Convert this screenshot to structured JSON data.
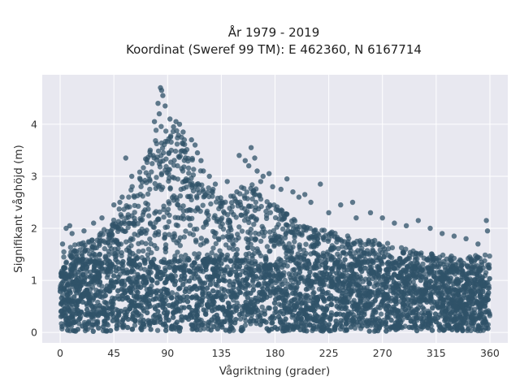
{
  "chart_data": {
    "type": "scatter",
    "title": "År 1979 - 2019",
    "subtitle": "Koordinat (Sweref 99 TM): E 462360, N 6167714",
    "xlabel": "Vågriktning (grader)",
    "ylabel": "Signifikant våghöjd (m)",
    "xlim": [
      -15,
      375
    ],
    "ylim": [
      -0.2,
      4.95
    ],
    "xticks": [
      0,
      45,
      90,
      135,
      180,
      225,
      270,
      315,
      360
    ],
    "xtick_labels": [
      "0",
      "45",
      "90",
      "135",
      "180",
      "225",
      "270",
      "315",
      "360"
    ],
    "yticks": [
      0,
      1,
      2,
      3,
      4
    ],
    "ytick_labels": [
      "0",
      "1",
      "2",
      "3",
      "4"
    ],
    "grid": true,
    "legend": "none",
    "colors": {
      "background": "#e8e8f0",
      "grid": "#ffffff",
      "marker": "#2f5268"
    },
    "series": [
      {
        "upper_envelope": {
          "x": [
            0,
            15,
            30,
            45,
            55,
            65,
            75,
            80,
            85,
            90,
            100,
            110,
            125,
            140,
            155,
            165,
            180,
            200,
            225,
            250,
            270,
            290,
            315,
            340,
            360
          ],
          "y": [
            1.6,
            1.7,
            1.85,
            2.2,
            2.6,
            3.0,
            3.55,
            3.9,
            4.1,
            3.85,
            3.9,
            3.5,
            2.85,
            2.55,
            2.9,
            2.8,
            2.45,
            2.1,
            1.95,
            1.8,
            1.75,
            1.6,
            1.5,
            1.45,
            1.55
          ]
        },
        "outliers": {
          "x": [
            84,
            85,
            86,
            82,
            88,
            83,
            79,
            92,
            97,
            95,
            100,
            103,
            110,
            113,
            115,
            118,
            120,
            125,
            130,
            140,
            148,
            150,
            155,
            158,
            160,
            163,
            165,
            168,
            170,
            175,
            178,
            185,
            190,
            195,
            200,
            205,
            210,
            218,
            225,
            235,
            245,
            248,
            260,
            270,
            280,
            290,
            300,
            310,
            320,
            330,
            340,
            350,
            357,
            358,
            45,
            50,
            52,
            55,
            60,
            35,
            28,
            20,
            10,
            5,
            2,
            8
          ],
          "y": [
            4.7,
            4.65,
            4.55,
            4.4,
            4.35,
            4.2,
            4.05,
            4.1,
            4.05,
            3.95,
            4.0,
            3.85,
            3.7,
            3.6,
            3.45,
            3.3,
            3.1,
            3.0,
            2.85,
            2.9,
            2.7,
            3.4,
            3.3,
            3.2,
            3.55,
            3.35,
            3.1,
            2.9,
            3.0,
            3.05,
            2.8,
            2.75,
            2.95,
            2.7,
            2.6,
            2.65,
            2.5,
            2.85,
            2.3,
            2.45,
            2.5,
            2.2,
            2.3,
            2.2,
            2.1,
            2.05,
            2.15,
            2.0,
            1.9,
            1.85,
            1.8,
            1.7,
            2.15,
            1.95,
            2.45,
            2.5,
            2.6,
            3.35,
            3.0,
            2.2,
            2.1,
            1.95,
            1.9,
            2.0,
            1.7,
            2.05
          ]
        }
      }
    ]
  }
}
